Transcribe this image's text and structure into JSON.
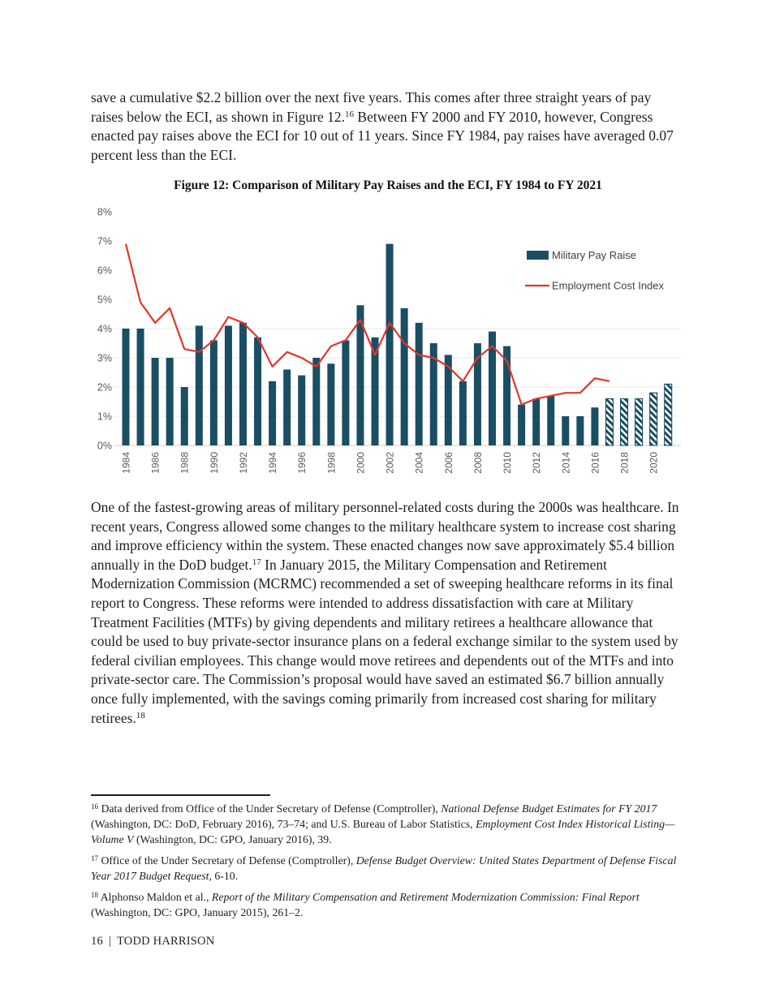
{
  "intro_paragraph": {
    "segments": [
      {
        "t": "save a cumulative $2.2 billion over the next five years. This comes after three straight years of pay raises below the ECI, as shown in Figure 12."
      },
      {
        "sup": "16"
      },
      {
        "t": " Between FY 2000 and FY 2010, however, Congress enacted pay raises above the ECI for 10 out of 11 years. Since FY 1984, pay raises have averaged 0.07 percent less than the ECI."
      }
    ]
  },
  "figure": {
    "title": "Figure 12: Comparison of Military Pay Raises and the ECI, FY 1984 to FY 2021"
  },
  "chart_data": {
    "type": "bar",
    "title": "Figure 12: Comparison of Military Pay Raises and the ECI, FY 1984 to FY 2021",
    "categories": [
      1984,
      1985,
      1986,
      1987,
      1988,
      1989,
      1990,
      1991,
      1992,
      1993,
      1994,
      1995,
      1996,
      1997,
      1998,
      1999,
      2000,
      2001,
      2002,
      2003,
      2004,
      2005,
      2006,
      2007,
      2008,
      2009,
      2010,
      2011,
      2012,
      2013,
      2014,
      2015,
      2016,
      2017,
      2018,
      2019,
      2020,
      2021
    ],
    "series": [
      {
        "name": "Military Pay Raise",
        "type": "bar",
        "color": "#1a4e62",
        "values": [
          4.0,
          4.0,
          3.0,
          3.0,
          2.0,
          4.1,
          3.6,
          4.1,
          4.2,
          3.7,
          2.2,
          2.6,
          2.4,
          3.0,
          2.8,
          3.6,
          4.8,
          3.7,
          6.9,
          4.7,
          4.2,
          3.5,
          3.1,
          2.2,
          3.5,
          3.9,
          3.4,
          1.4,
          1.6,
          1.7,
          1.0,
          1.0,
          1.3,
          1.6,
          1.6,
          1.6,
          1.8,
          2.1
        ],
        "hatched_from_year": 2017,
        "hatch_note": "bars for 2017-2021 drawn with diagonal hatching (projected)"
      },
      {
        "name": "Employment Cost Index",
        "type": "line",
        "color": "#e2362c",
        "values": [
          6.9,
          4.9,
          4.2,
          4.7,
          3.3,
          3.2,
          3.6,
          4.4,
          4.2,
          3.7,
          2.7,
          3.2,
          3.0,
          2.7,
          3.4,
          3.6,
          4.3,
          3.1,
          4.2,
          3.5,
          3.1,
          3.0,
          2.7,
          2.2,
          3.0,
          3.4,
          2.9,
          1.4,
          1.6,
          1.7,
          1.8,
          1.8,
          2.3,
          2.2,
          null,
          null,
          null,
          null
        ]
      }
    ],
    "xlabel": "",
    "ylabel": "",
    "ylim": [
      0,
      8
    ],
    "yticks": [
      "0%",
      "1%",
      "2%",
      "3%",
      "4%",
      "5%",
      "6%",
      "7%",
      "8%"
    ],
    "xticks": [
      1984,
      1986,
      1988,
      1990,
      1992,
      1994,
      1996,
      1998,
      2000,
      2002,
      2004,
      2006,
      2008,
      2010,
      2012,
      2014,
      2016,
      2018,
      2020
    ],
    "xtick_rotation": -90,
    "grid_percent_levels": [
      1,
      2,
      3,
      4
    ],
    "legend_position": "upper right",
    "axis_text_color": "#595959",
    "legend_text_color": "#3f3f3f",
    "gridline_color": "#e8e8e8",
    "baseline_color": "#cfcfcf"
  },
  "body_paragraph": {
    "segments": [
      {
        "t": "One of the fastest-growing areas of military personnel-related costs during the 2000s was healthcare. In recent years, Congress allowed some changes to the military healthcare system to increase cost sharing and improve efficiency within the system. These enacted changes now save approximately $5.4 billion annually in the DoD budget."
      },
      {
        "sup": "17"
      },
      {
        "t": " In January 2015, the Military Compensation and Retirement Modernization Commission (MCRMC) recommended a set of sweeping healthcare reforms in its final report to Congress. These reforms were intended to address dissatisfaction with care at Military Treatment Facilities (MTFs) by giving dependents and military retirees a healthcare allowance that could be used to buy private-sector insurance plans on a federal exchange similar to the system used by federal civilian employees. This change would move retirees and dependents out of the MTFs and into private-sector care. The Commission’s proposal would have saved an estimated $6.7 billion annually once fully implemented, with the savings coming primarily from increased cost sharing for military retirees."
      },
      {
        "sup": "18"
      }
    ]
  },
  "footnotes": [
    {
      "marker": "16",
      "segments": [
        {
          "t": "Data derived from Office of the Under Secretary of Defense (Comptroller), "
        },
        {
          "i": "National Defense Budget Estimates for FY 2017"
        },
        {
          "t": " (Washington, DC: DoD, February 2016), 73–74; and U.S. Bureau of Labor Statistics, "
        },
        {
          "i": "Employment Cost Index Historical Listing—Volume V"
        },
        {
          "t": " (Washington, DC: GPO, January 2016), 39."
        }
      ]
    },
    {
      "marker": "17",
      "segments": [
        {
          "t": "Office of the Under Secretary of Defense (Comptroller), "
        },
        {
          "i": "Defense Budget Overview: United States Department of Defense Fiscal Year 2017 Budget Request"
        },
        {
          "t": ", 6-10."
        }
      ]
    },
    {
      "marker": "18",
      "segments": [
        {
          "t": "Alphonso Maldon et al., "
        },
        {
          "i": "Report of the Military Compensation and Retirement Modernization Commission: Final Report"
        },
        {
          "t": " (Washington, DC: GPO, January 2015), 261–2."
        }
      ]
    }
  ],
  "footer": {
    "page_number": "16",
    "divider": "|",
    "author": "TODD HARRISON"
  }
}
